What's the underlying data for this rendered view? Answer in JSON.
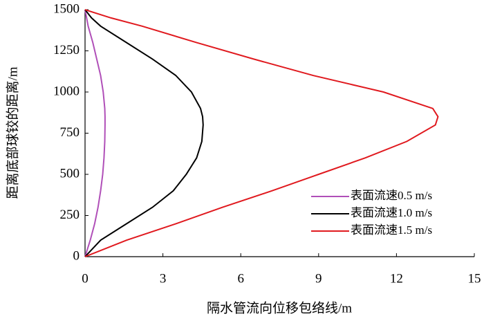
{
  "chart_data": {
    "type": "line",
    "x_label": "隔水管流向位移包络线/m",
    "y_label": "距离底部球铰的距离/m",
    "y": [
      0,
      100,
      200,
      300,
      400,
      500,
      600,
      700,
      800,
      850,
      900,
      1000,
      1100,
      1200,
      1300,
      1400,
      1450,
      1500
    ],
    "series": [
      {
        "name": "表面流速0.5 m/s",
        "color": "#b04fb8",
        "values": [
          0,
          0.2,
          0.37,
          0.5,
          0.6,
          0.68,
          0.73,
          0.76,
          0.77,
          0.77,
          0.76,
          0.7,
          0.6,
          0.45,
          0.3,
          0.12,
          0.06,
          0
        ]
      },
      {
        "name": "表面流速1.0 m/s",
        "color": "#000000",
        "values": [
          0,
          0.6,
          1.6,
          2.6,
          3.4,
          3.9,
          4.3,
          4.5,
          4.55,
          4.53,
          4.45,
          4.1,
          3.5,
          2.6,
          1.6,
          0.6,
          0.25,
          0
        ]
      },
      {
        "name": "表面流速1.5 m/s",
        "color": "#e0191e",
        "values": [
          0,
          1.6,
          3.5,
          5.3,
          7.2,
          9.0,
          10.8,
          12.4,
          13.5,
          13.6,
          13.4,
          11.5,
          8.8,
          6.5,
          4.3,
          2.2,
          1.0,
          0
        ]
      }
    ],
    "xlim": [
      0,
      15
    ],
    "xticks": [
      0,
      3,
      6,
      9,
      12,
      15
    ],
    "ylim": [
      0,
      1500
    ],
    "yticks": [
      0,
      250,
      500,
      750,
      1000,
      1250,
      1500
    ],
    "grid": false,
    "legend": "lower right"
  }
}
